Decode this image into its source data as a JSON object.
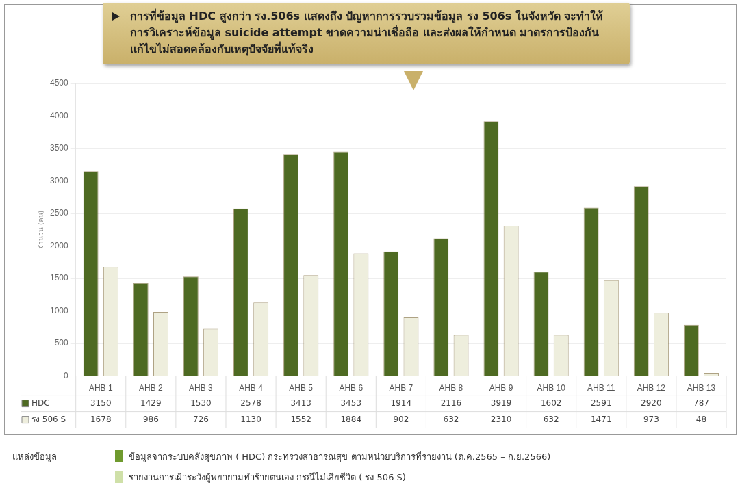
{
  "chart_data": {
    "type": "bar",
    "ylabel": "จำนวน (คน)",
    "categories": [
      "AHB 1",
      "AHB 2",
      "AHB 3",
      "AHB 4",
      "AHB 5",
      "AHB 6",
      "AHB 7",
      "AHB 8",
      "AHB 9",
      "AHB 10",
      "AHB 11",
      "AHB 12",
      "AHB 13"
    ],
    "series": [
      {
        "name": "HDC",
        "color": "#4e6a22",
        "values": [
          3150,
          1429,
          1530,
          2578,
          3413,
          3453,
          1914,
          2116,
          3919,
          1602,
          2591,
          2920,
          787
        ]
      },
      {
        "name": "รง 506 S",
        "color": "#eeeedd",
        "values": [
          1678,
          986,
          726,
          1130,
          1552,
          1884,
          902,
          632,
          2310,
          632,
          1471,
          973,
          48
        ]
      }
    ],
    "ylim": [
      0,
      4500
    ],
    "yticks": [
      0,
      500,
      1000,
      1500,
      2000,
      2500,
      3000,
      3500,
      4000,
      4500
    ],
    "grid": "y",
    "legend": "bottom left",
    "data_labels": true,
    "annotations": [
      "การที่ข้อมูล HDC สูงกว่า รง.506s แสดงถึง ปัญหาการรวบรวมข้อมูล รง 506s ในจังหวัด จะทำให้การวิเคราะห์ข้อมูล suicide attempt ขาดความน่าเชื่อถือ และส่งผลให้กำหนด มาตรการป้องกันแก้ไขไม่สอดคล้องกับเหตุปัจจัยที่แท้จริง",
      "แหล่งข้อมูล",
      "ข้อมูลจากระบบคลังสุขภาพ ( HDC) กระทรวงสาธารณสุข ตามหน่วยบริการที่รายงาน (ต.ค.2565 – ก.ย.2566)",
      "รายงานการเฝ้าระวังผู้พยายามทำร้ายตนเอง กรณีไม่เสียชีวิต ( รง 506 S)"
    ]
  }
}
